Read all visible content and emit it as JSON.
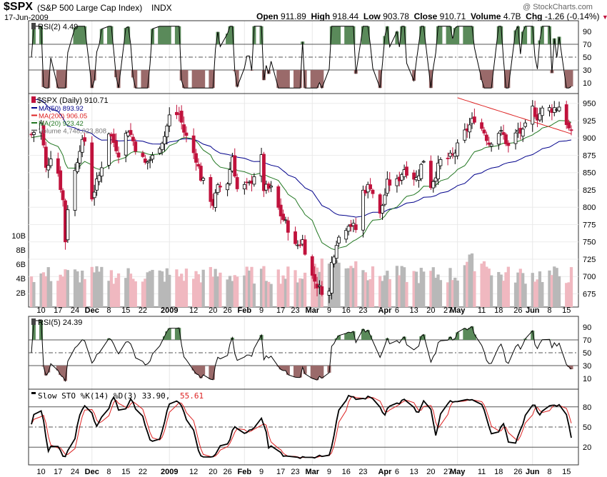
{
  "header": {
    "symbol": "$SPX",
    "name": "(S&P 500 Large Cap Index)",
    "exchange": "INDX",
    "date": "17-Jun-2009",
    "watermark": "@ StockCharts.com",
    "open_label": "Open",
    "open": "911.89",
    "high_label": "High",
    "high": "918.44",
    "low_label": "Low",
    "low": "903.78",
    "close_label": "Close",
    "close": "910.71",
    "volume_label": "Volume",
    "volume": "4.7B",
    "chg_label": "Chg",
    "chg": "-1.26 (-0.14%)"
  },
  "colors": {
    "up": "#000000",
    "down": "#c0123c",
    "ma50": "#00008b",
    "ma200": "#dd2222",
    "ma20": "#227722",
    "vol_up": "#b8b8b8",
    "vol_down": "#f0b8c0",
    "rsi_high_fill": "#5a8a5a",
    "rsi_low_fill": "#9a6a6a",
    "sto_k": "#000000",
    "sto_d": "#dd2222"
  },
  "panels": {
    "rsi2": {
      "label": "RSI(2) 4.49",
      "ticks": [
        "90",
        "70",
        "50",
        "30",
        "10"
      ]
    },
    "price": {
      "label": "$SPX (Daily) 910.71",
      "legend": [
        {
          "text": "MA(50) 893.92",
          "color": "#00008b"
        },
        {
          "text": "MA(200) 906.05",
          "color": "#dd2222"
        },
        {
          "text": "MA(20) 923.42",
          "color": "#227722"
        },
        {
          "text": "Volume 4,748,023,808",
          "color": "#777777"
        }
      ],
      "ticks": [
        "950",
        "925",
        "900",
        "875",
        "850",
        "825",
        "800",
        "775",
        "750",
        "725",
        "700",
        "675"
      ],
      "vol_ticks": [
        "10B",
        "8B",
        "6B",
        "4B",
        "2B"
      ]
    },
    "rsi5": {
      "label": "RSI(5) 24.39",
      "ticks": [
        "90",
        "70",
        "50",
        "30",
        "10"
      ]
    },
    "sto": {
      "label": "Slow STO %K(14) %D(3) 33.90,",
      "label_d": "55.61",
      "ticks": [
        "80",
        "50",
        "20"
      ]
    }
  },
  "x_axis": {
    "labels": [
      "10",
      "17",
      "24",
      "Dec",
      "8",
      "15",
      "22",
      "2009",
      "12",
      "20",
      "26",
      "Feb",
      "9",
      "17",
      "23",
      "Mar",
      "9",
      "16",
      "23",
      "Apr",
      "6",
      "13",
      "20",
      "27",
      "May",
      "11",
      "18",
      "26",
      "Jun",
      "8",
      "15"
    ]
  },
  "chart_data": {
    "type": "candlestick",
    "title": "$SPX (S&P 500 Large Cap Index) INDX",
    "y_range": [
      660,
      960
    ],
    "x_range": [
      "2008-11-06",
      "2009-06-17"
    ],
    "month_dates": [
      "2008-12-01",
      "2009-01-02",
      "2009-02-02",
      "2009-03-02",
      "2009-04-01",
      "2009-05-01",
      "2009-06-01"
    ],
    "ohlc_anchor_close": [
      [
        "2008-11-06",
        905
      ],
      [
        "2008-11-10",
        920
      ],
      [
        "2008-11-12",
        855
      ],
      [
        "2008-11-14",
        875
      ],
      [
        "2008-11-17",
        850
      ],
      [
        "2008-11-19",
        810
      ],
      [
        "2008-11-20",
        752
      ],
      [
        "2008-11-21",
        800
      ],
      [
        "2008-11-24",
        852
      ],
      [
        "2008-11-26",
        887
      ],
      [
        "2008-11-28",
        896
      ],
      [
        "2008-12-01",
        815
      ],
      [
        "2008-12-04",
        845
      ],
      [
        "2008-12-08",
        909
      ],
      [
        "2008-12-12",
        879
      ],
      [
        "2008-12-16",
        913
      ],
      [
        "2008-12-19",
        887
      ],
      [
        "2008-12-23",
        863
      ],
      [
        "2008-12-26",
        872
      ],
      [
        "2008-12-31",
        903
      ],
      [
        "2009-01-02",
        931
      ],
      [
        "2009-01-06",
        935
      ],
      [
        "2009-01-08",
        909
      ],
      [
        "2009-01-13",
        871
      ],
      [
        "2009-01-15",
        843
      ],
      [
        "2009-01-20",
        805
      ],
      [
        "2009-01-22",
        827
      ],
      [
        "2009-01-26",
        836
      ],
      [
        "2009-01-28",
        874
      ],
      [
        "2009-01-30",
        826
      ],
      [
        "2009-02-04",
        832
      ],
      [
        "2009-02-09",
        870
      ],
      [
        "2009-02-10",
        827
      ],
      [
        "2009-02-13",
        826
      ],
      [
        "2009-02-17",
        789
      ],
      [
        "2009-02-20",
        770
      ],
      [
        "2009-02-23",
        743
      ],
      [
        "2009-02-26",
        752
      ],
      [
        "2009-03-02",
        700
      ],
      [
        "2009-03-05",
        682
      ],
      [
        "2009-03-09",
        677
      ],
      [
        "2009-03-10",
        719
      ],
      [
        "2009-03-12",
        751
      ],
      [
        "2009-03-17",
        778
      ],
      [
        "2009-03-20",
        768
      ],
      [
        "2009-03-23",
        823
      ],
      [
        "2009-03-26",
        832
      ],
      [
        "2009-03-30",
        788
      ],
      [
        "2009-04-02",
        834
      ],
      [
        "2009-04-06",
        836
      ],
      [
        "2009-04-09",
        856
      ],
      [
        "2009-04-14",
        841
      ],
      [
        "2009-04-17",
        869
      ],
      [
        "2009-04-20",
        832
      ],
      [
        "2009-04-24",
        866
      ],
      [
        "2009-04-29",
        873
      ],
      [
        "2009-05-04",
        907
      ],
      [
        "2009-05-08",
        929
      ],
      [
        "2009-05-12",
        909
      ],
      [
        "2009-05-14",
        893
      ],
      [
        "2009-05-18",
        909
      ],
      [
        "2009-05-20",
        903
      ],
      [
        "2009-05-22",
        887
      ],
      [
        "2009-05-26",
        910
      ],
      [
        "2009-05-28",
        906
      ],
      [
        "2009-06-01",
        942
      ],
      [
        "2009-06-03",
        931
      ],
      [
        "2009-06-05",
        940
      ],
      [
        "2009-06-09",
        942
      ],
      [
        "2009-06-11",
        944
      ],
      [
        "2009-06-12",
        946
      ],
      [
        "2009-06-15",
        923
      ],
      [
        "2009-06-16",
        912
      ],
      [
        "2009-06-17",
        910.71
      ]
    ],
    "ma_last": {
      "ma50": 893.92,
      "ma200": 906.05,
      "ma20": 923.42
    },
    "rsi2_last": 4.49,
    "rsi5_last": 24.39,
    "sto_last": {
      "k": 33.9,
      "d": 55.61
    },
    "volume_last": 4748023808,
    "volume_range": [
      0,
      10000000000
    ]
  }
}
